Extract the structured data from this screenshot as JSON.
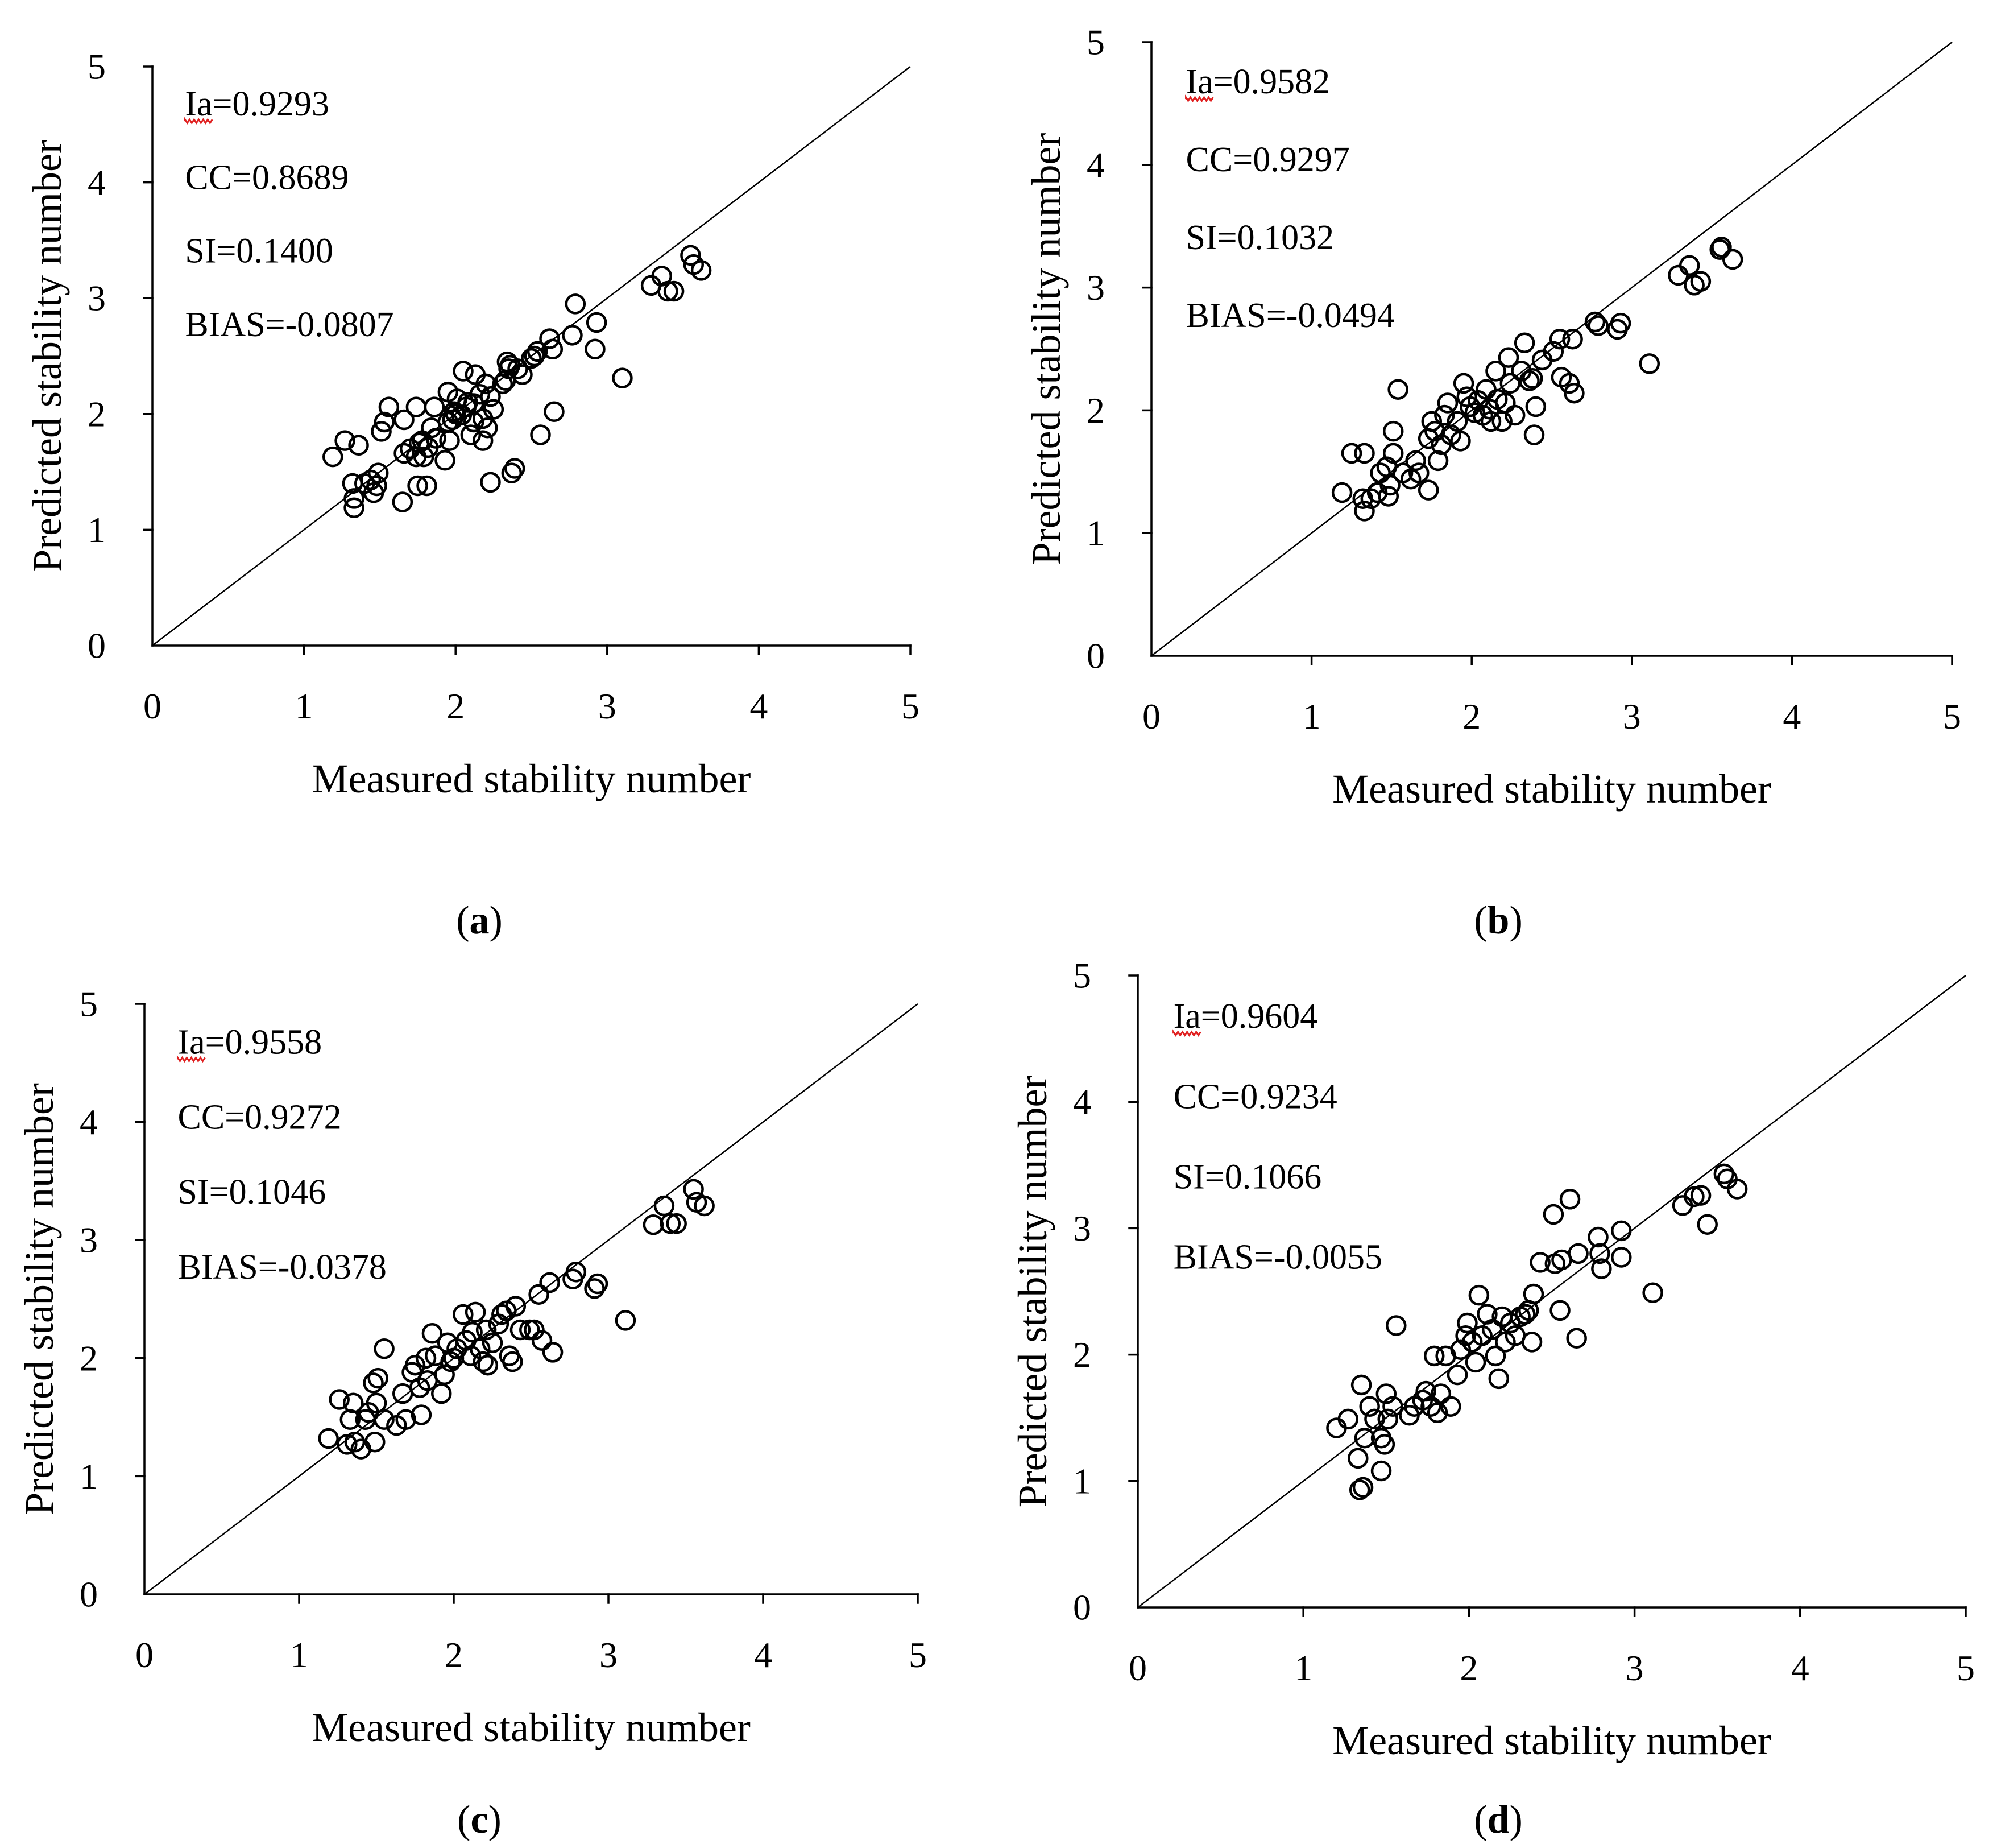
{
  "colors": {
    "ink": "#000000",
    "background": "#ffffff",
    "spellcheck": "#e02020"
  },
  "chart_data": [
    {
      "type": "scatter",
      "panel": "a",
      "caption": "(a)",
      "xlabel": "Measured stability number",
      "ylabel": "Predicted stability number",
      "xlim": [
        0,
        5
      ],
      "ylim": [
        0,
        5
      ],
      "xticks": [
        0,
        1,
        2,
        3,
        4,
        5
      ],
      "yticks": [
        0,
        1,
        2,
        3,
        4,
        5
      ],
      "annotations": [
        "Ia=0.9293",
        "CC=0.8689",
        "SI=0.1400",
        "BIAS=-0.0807"
      ],
      "reference_line": {
        "x": [
          0,
          5
        ],
        "y": [
          0,
          5
        ]
      },
      "points": [
        [
          1.19,
          1.63
        ],
        [
          1.27,
          1.77
        ],
        [
          1.36,
          1.73
        ],
        [
          1.32,
          1.4
        ],
        [
          1.33,
          1.27
        ],
        [
          1.33,
          1.19
        ],
        [
          1.4,
          1.4
        ],
        [
          1.44,
          1.43
        ],
        [
          1.46,
          1.32
        ],
        [
          1.48,
          1.38
        ],
        [
          1.49,
          1.49
        ],
        [
          1.51,
          1.85
        ],
        [
          1.53,
          1.93
        ],
        [
          1.56,
          2.06
        ],
        [
          1.65,
          1.24
        ],
        [
          1.66,
          1.95
        ],
        [
          1.66,
          1.66
        ],
        [
          1.7,
          1.7
        ],
        [
          1.74,
          2.06
        ],
        [
          1.74,
          1.63
        ],
        [
          1.75,
          1.38
        ],
        [
          1.76,
          1.75
        ],
        [
          1.78,
          1.77
        ],
        [
          1.79,
          1.63
        ],
        [
          1.81,
          1.38
        ],
        [
          1.82,
          1.71
        ],
        [
          1.84,
          1.88
        ],
        [
          1.86,
          2.06
        ],
        [
          1.87,
          1.79
        ],
        [
          1.93,
          1.6
        ],
        [
          1.95,
          1.93
        ],
        [
          1.95,
          2.19
        ],
        [
          1.96,
          1.77
        ],
        [
          1.98,
          1.95
        ],
        [
          1.99,
          2.02
        ],
        [
          2.0,
          2.0
        ],
        [
          2.01,
          2.13
        ],
        [
          2.05,
          2.37
        ],
        [
          2.04,
          1.99
        ],
        [
          2.07,
          2.06
        ],
        [
          2.08,
          2.1
        ],
        [
          2.1,
          1.82
        ],
        [
          2.12,
          2.09
        ],
        [
          2.12,
          1.93
        ],
        [
          2.13,
          2.34
        ],
        [
          2.16,
          2.17
        ],
        [
          2.18,
          1.96
        ],
        [
          2.18,
          1.77
        ],
        [
          2.2,
          2.26
        ],
        [
          2.21,
          1.88
        ],
        [
          2.23,
          2.15
        ],
        [
          2.23,
          1.41
        ],
        [
          2.25,
          2.04
        ],
        [
          2.31,
          2.26
        ],
        [
          2.33,
          2.29
        ],
        [
          2.34,
          2.45
        ],
        [
          2.35,
          2.39
        ],
        [
          2.36,
          2.42
        ],
        [
          2.37,
          1.49
        ],
        [
          2.39,
          1.53
        ],
        [
          2.41,
          2.39
        ],
        [
          2.44,
          2.34
        ],
        [
          2.5,
          2.48
        ],
        [
          2.52,
          2.5
        ],
        [
          2.54,
          2.54
        ],
        [
          2.56,
          1.82
        ],
        [
          2.62,
          2.65
        ],
        [
          2.64,
          2.56
        ],
        [
          2.65,
          2.02
        ],
        [
          2.77,
          2.68
        ],
        [
          2.79,
          2.95
        ],
        [
          2.92,
          2.56
        ],
        [
          2.93,
          2.79
        ],
        [
          3.1,
          2.31
        ],
        [
          3.29,
          3.11
        ],
        [
          3.36,
          3.19
        ],
        [
          3.4,
          3.06
        ],
        [
          3.44,
          3.06
        ],
        [
          3.55,
          3.37
        ],
        [
          3.57,
          3.29
        ],
        [
          3.62,
          3.24
        ]
      ]
    },
    {
      "type": "scatter",
      "panel": "b",
      "caption": "(b)",
      "xlabel": "Measured stability number",
      "ylabel": "Predicted stability number",
      "xlim": [
        0,
        5
      ],
      "ylim": [
        0,
        5
      ],
      "xticks": [
        0,
        1,
        2,
        3,
        4,
        5
      ],
      "yticks": [
        0,
        1,
        2,
        3,
        4,
        5
      ],
      "annotations": [
        "Ia=0.9582",
        "CC=0.9297",
        "SI=0.1032",
        "BIAS=-0.0494"
      ],
      "reference_line": {
        "x": [
          0,
          5
        ],
        "y": [
          0,
          5
        ]
      },
      "points": [
        [
          1.19,
          1.33
        ],
        [
          1.25,
          1.65
        ],
        [
          1.33,
          1.65
        ],
        [
          1.32,
          1.28
        ],
        [
          1.33,
          1.18
        ],
        [
          1.37,
          1.28
        ],
        [
          1.41,
          1.33
        ],
        [
          1.43,
          1.49
        ],
        [
          1.47,
          1.54
        ],
        [
          1.48,
          1.3
        ],
        [
          1.49,
          1.39
        ],
        [
          1.51,
          1.83
        ],
        [
          1.51,
          1.65
        ],
        [
          1.54,
          2.17
        ],
        [
          1.57,
          1.49
        ],
        [
          1.62,
          1.44
        ],
        [
          1.65,
          1.59
        ],
        [
          1.67,
          1.49
        ],
        [
          1.73,
          1.35
        ],
        [
          1.73,
          1.77
        ],
        [
          1.75,
          1.91
        ],
        [
          1.77,
          1.83
        ],
        [
          1.79,
          1.59
        ],
        [
          1.81,
          1.72
        ],
        [
          1.83,
          1.96
        ],
        [
          1.85,
          2.06
        ],
        [
          1.87,
          1.8
        ],
        [
          1.91,
          1.91
        ],
        [
          1.93,
          1.75
        ],
        [
          1.95,
          2.22
        ],
        [
          1.97,
          2.11
        ],
        [
          1.99,
          2.03
        ],
        [
          2.02,
          1.98
        ],
        [
          2.04,
          2.08
        ],
        [
          2.07,
          1.96
        ],
        [
          2.09,
          2.17
        ],
        [
          2.11,
          2.01
        ],
        [
          2.12,
          1.91
        ],
        [
          2.15,
          2.32
        ],
        [
          2.16,
          2.09
        ],
        [
          2.19,
          1.91
        ],
        [
          2.21,
          2.06
        ],
        [
          2.23,
          2.43
        ],
        [
          2.24,
          2.22
        ],
        [
          2.27,
          1.96
        ],
        [
          2.31,
          2.32
        ],
        [
          2.33,
          2.55
        ],
        [
          2.36,
          2.24
        ],
        [
          2.38,
          2.26
        ],
        [
          2.39,
          1.8
        ],
        [
          2.4,
          2.03
        ],
        [
          2.44,
          2.41
        ],
        [
          2.51,
          2.48
        ],
        [
          2.55,
          2.58
        ],
        [
          2.56,
          2.27
        ],
        [
          2.61,
          2.22
        ],
        [
          2.63,
          2.58
        ],
        [
          2.64,
          2.14
        ],
        [
          2.77,
          2.72
        ],
        [
          2.79,
          2.69
        ],
        [
          2.91,
          2.66
        ],
        [
          2.93,
          2.71
        ],
        [
          3.11,
          2.38
        ],
        [
          3.29,
          3.1
        ],
        [
          3.36,
          3.18
        ],
        [
          3.39,
          3.02
        ],
        [
          3.43,
          3.05
        ],
        [
          3.55,
          3.31
        ],
        [
          3.56,
          3.33
        ],
        [
          3.63,
          3.23
        ]
      ]
    },
    {
      "type": "scatter",
      "panel": "c",
      "caption": "(c)",
      "xlabel": "Measured stability number",
      "ylabel": "Predicted stability number",
      "xlim": [
        0,
        5
      ],
      "ylim": [
        0,
        5
      ],
      "xticks": [
        0,
        1,
        2,
        3,
        4,
        5
      ],
      "yticks": [
        0,
        1,
        2,
        3,
        4,
        5
      ],
      "annotations": [
        "Ia=0.9558",
        "CC=0.9272",
        "SI=0.1046",
        "BIAS=-0.0378"
      ],
      "reference_line": {
        "x": [
          0,
          5
        ],
        "y": [
          0,
          5
        ]
      },
      "points": [
        [
          1.19,
          1.32
        ],
        [
          1.26,
          1.65
        ],
        [
          1.31,
          1.27
        ],
        [
          1.33,
          1.48
        ],
        [
          1.35,
          1.62
        ],
        [
          1.36,
          1.29
        ],
        [
          1.4,
          1.23
        ],
        [
          1.43,
          1.48
        ],
        [
          1.45,
          1.54
        ],
        [
          1.48,
          1.79
        ],
        [
          1.49,
          1.29
        ],
        [
          1.51,
          1.83
        ],
        [
          1.5,
          1.62
        ],
        [
          1.55,
          2.08
        ],
        [
          1.55,
          1.48
        ],
        [
          1.63,
          1.43
        ],
        [
          1.67,
          1.7
        ],
        [
          1.69,
          1.48
        ],
        [
          1.73,
          1.88
        ],
        [
          1.75,
          1.94
        ],
        [
          1.78,
          1.75
        ],
        [
          1.79,
          1.52
        ],
        [
          1.82,
          2.0
        ],
        [
          1.83,
          1.81
        ],
        [
          1.86,
          2.21
        ],
        [
          1.88,
          2.02
        ],
        [
          1.92,
          1.7
        ],
        [
          1.94,
          1.86
        ],
        [
          1.96,
          2.13
        ],
        [
          1.98,
          1.97
        ],
        [
          2.0,
          2.0
        ],
        [
          2.02,
          2.08
        ],
        [
          2.06,
          2.37
        ],
        [
          2.08,
          2.15
        ],
        [
          2.11,
          2.02
        ],
        [
          2.12,
          2.22
        ],
        [
          2.14,
          2.39
        ],
        [
          2.17,
          2.08
        ],
        [
          2.19,
          1.97
        ],
        [
          2.21,
          2.24
        ],
        [
          2.22,
          1.94
        ],
        [
          2.25,
          2.13
        ],
        [
          2.29,
          2.29
        ],
        [
          2.31,
          2.37
        ],
        [
          2.34,
          2.4
        ],
        [
          2.36,
          2.02
        ],
        [
          2.38,
          1.97
        ],
        [
          2.4,
          2.44
        ],
        [
          2.43,
          2.24
        ],
        [
          2.49,
          2.24
        ],
        [
          2.52,
          2.24
        ],
        [
          2.55,
          2.54
        ],
        [
          2.57,
          2.15
        ],
        [
          2.62,
          2.64
        ],
        [
          2.64,
          2.05
        ],
        [
          2.77,
          2.67
        ],
        [
          2.79,
          2.73
        ],
        [
          2.91,
          2.59
        ],
        [
          2.93,
          2.63
        ],
        [
          3.11,
          2.32
        ],
        [
          3.29,
          3.13
        ],
        [
          3.36,
          3.29
        ],
        [
          3.4,
          3.14
        ],
        [
          3.44,
          3.14
        ],
        [
          3.55,
          3.43
        ],
        [
          3.57,
          3.32
        ],
        [
          3.62,
          3.29
        ]
      ]
    },
    {
      "type": "scatter",
      "panel": "d",
      "caption": "(d)",
      "xlabel": "Measured stability number",
      "ylabel": "Predicted stability number",
      "xlim": [
        0,
        5
      ],
      "ylim": [
        0,
        5
      ],
      "xticks": [
        0,
        1,
        2,
        3,
        4,
        5
      ],
      "yticks": [
        0,
        1,
        2,
        3,
        4,
        5
      ],
      "annotations": [
        "Ia=0.9604",
        "CC=0.9234",
        "SI=0.1066",
        "BIAS=-0.0055"
      ],
      "reference_line": {
        "x": [
          0,
          5
        ],
        "y": [
          0,
          5
        ]
      },
      "points": [
        [
          1.2,
          1.42
        ],
        [
          1.27,
          1.49
        ],
        [
          1.33,
          1.18
        ],
        [
          1.35,
          1.76
        ],
        [
          1.34,
          0.93
        ],
        [
          1.36,
          0.95
        ],
        [
          1.37,
          1.34
        ],
        [
          1.4,
          1.59
        ],
        [
          1.43,
          1.49
        ],
        [
          1.47,
          1.08
        ],
        [
          1.47,
          1.34
        ],
        [
          1.49,
          1.29
        ],
        [
          1.5,
          1.69
        ],
        [
          1.51,
          1.49
        ],
        [
          1.54,
          1.59
        ],
        [
          1.56,
          2.23
        ],
        [
          1.64,
          1.52
        ],
        [
          1.67,
          1.59
        ],
        [
          1.72,
          1.64
        ],
        [
          1.74,
          1.71
        ],
        [
          1.77,
          1.59
        ],
        [
          1.79,
          1.99
        ],
        [
          1.81,
          1.54
        ],
        [
          1.83,
          1.69
        ],
        [
          1.86,
          1.99
        ],
        [
          1.89,
          1.59
        ],
        [
          1.93,
          1.84
        ],
        [
          1.95,
          2.04
        ],
        [
          1.98,
          2.15
        ],
        [
          1.99,
          2.25
        ],
        [
          2.02,
          2.1
        ],
        [
          2.04,
          1.94
        ],
        [
          2.06,
          2.47
        ],
        [
          2.08,
          2.15
        ],
        [
          2.11,
          2.32
        ],
        [
          2.14,
          2.2
        ],
        [
          2.16,
          1.99
        ],
        [
          2.18,
          1.81
        ],
        [
          2.2,
          2.3
        ],
        [
          2.22,
          2.1
        ],
        [
          2.25,
          2.25
        ],
        [
          2.28,
          2.15
        ],
        [
          2.31,
          2.3
        ],
        [
          2.34,
          2.32
        ],
        [
          2.36,
          2.35
        ],
        [
          2.38,
          2.1
        ],
        [
          2.39,
          2.48
        ],
        [
          2.43,
          2.73
        ],
        [
          2.51,
          3.11
        ],
        [
          2.52,
          2.72
        ],
        [
          2.56,
          2.75
        ],
        [
          2.55,
          2.35
        ],
        [
          2.61,
          3.23
        ],
        [
          2.65,
          2.13
        ],
        [
          2.66,
          2.8
        ],
        [
          2.78,
          2.93
        ],
        [
          2.79,
          2.8
        ],
        [
          2.8,
          2.68
        ],
        [
          2.92,
          2.98
        ],
        [
          2.92,
          2.77
        ],
        [
          3.11,
          2.49
        ],
        [
          3.29,
          3.18
        ],
        [
          3.36,
          3.25
        ],
        [
          3.4,
          3.26
        ],
        [
          3.44,
          3.03
        ],
        [
          3.54,
          3.43
        ],
        [
          3.56,
          3.39
        ],
        [
          3.62,
          3.31
        ]
      ]
    }
  ]
}
